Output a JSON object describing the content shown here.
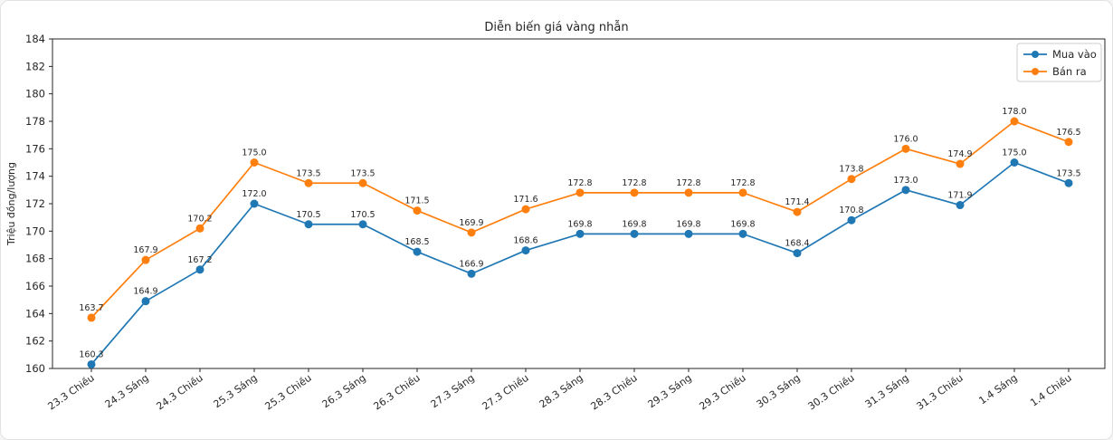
{
  "chart_data": {
    "type": "line",
    "title": "Diễn biến giá vàng nhẫn",
    "ylabel": "Triệu đồng/lượng",
    "xlabel": "",
    "categories": [
      "23.3 Chiều",
      "24.3 Sáng",
      "24.3 Chiều",
      "25.3 Sáng",
      "25.3 Chiều",
      "26.3 Sáng",
      "26.3 Chiều",
      "27.3 Sáng",
      "27.3 Chiều",
      "28.3 Sáng",
      "28.3 Chiều",
      "29.3 Sáng",
      "29.3 Chiều",
      "30.3 Sáng",
      "30.3 Chiều",
      "31.3 Sáng",
      "31.3 Chiều",
      "1.4 Sáng",
      "1.4 Chiều"
    ],
    "series": [
      {
        "name": "Mua vào",
        "color": "#1f77b4",
        "values": [
          160.3,
          164.9,
          167.2,
          172.0,
          170.5,
          170.5,
          168.5,
          166.9,
          168.6,
          169.8,
          169.8,
          169.8,
          169.8,
          168.4,
          170.8,
          173.0,
          171.9,
          175.0,
          173.5
        ]
      },
      {
        "name": "Bán ra",
        "color": "#ff7f0e",
        "values": [
          163.7,
          167.9,
          170.2,
          175.0,
          173.5,
          173.5,
          171.5,
          169.9,
          171.6,
          172.8,
          172.8,
          172.8,
          172.8,
          171.4,
          173.8,
          176.0,
          174.9,
          178.0,
          176.5
        ]
      }
    ],
    "ylim": [
      160,
      184
    ],
    "ytick_step": 2,
    "grid": false,
    "data_labels": true,
    "legend_position": "upper right",
    "axis_color": "#262626",
    "legend_border_color": "#cccccc"
  }
}
